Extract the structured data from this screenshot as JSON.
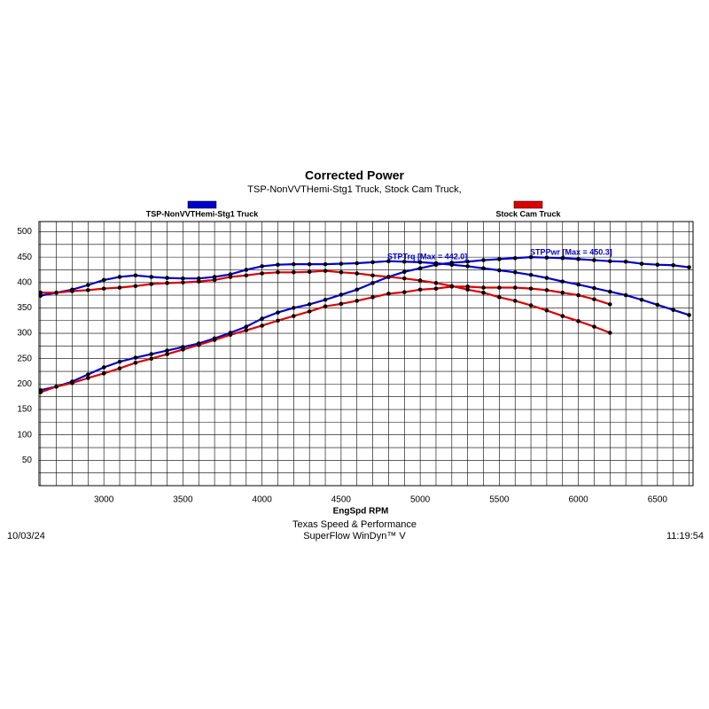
{
  "chart_data": {
    "type": "line",
    "title": "Corrected Power",
    "subtitle": "TSP-NonVVTHemi-Stg1 Truck, Stock Cam Truck,",
    "x_label": "EngSpd RPM",
    "annotations": [
      "STPTrq [Max = 442.0]",
      "STPPwr [Max = 450.3]"
    ],
    "footer": {
      "date": "10/03/24",
      "company": "Texas Speed & Performance",
      "software": "SuperFlow WinDyn™ V",
      "time": "11:19:54"
    },
    "x": [
      2600,
      2700,
      2800,
      2900,
      3000,
      3100,
      3200,
      3300,
      3400,
      3500,
      3600,
      3700,
      3800,
      3900,
      4000,
      4100,
      4200,
      4300,
      4400,
      4500,
      4600,
      4700,
      4800,
      4900,
      5000,
      5100,
      5200,
      5300,
      5400,
      5500,
      5600,
      5700,
      5800,
      5900,
      6000,
      6100,
      6200,
      6300,
      6400,
      6500,
      6600,
      6700
    ],
    "series": [
      {
        "name": "TSP-NonVVTHemi-Stg1 Truck",
        "color": "#0000cc",
        "torque": [
          374,
          380,
          386,
          395,
          405,
          411,
          414,
          411,
          409,
          408,
          408,
          411,
          416,
          425,
          432,
          435,
          436,
          436,
          436,
          437,
          438,
          440,
          442,
          441,
          440,
          438,
          435,
          432,
          428,
          424,
          420,
          415,
          409,
          402,
          396,
          389,
          382,
          375,
          366,
          356,
          346,
          336
        ],
        "power": [
          188,
          195,
          205,
          219,
          233,
          244,
          252,
          259,
          266,
          273,
          280,
          290,
          301,
          313,
          329,
          341,
          350,
          357,
          366,
          376,
          386,
          399,
          411,
          421,
          428,
          435,
          439,
          441,
          444,
          446,
          448,
          450,
          449,
          448,
          446,
          444,
          442,
          441,
          437,
          435,
          434,
          430
        ]
      },
      {
        "name": "Stock Cam Truck",
        "color": "#dd0000",
        "torque": [
          380,
          380,
          383,
          385,
          388,
          390,
          393,
          397,
          399,
          400,
          402,
          405,
          411,
          414,
          418,
          420,
          420,
          421,
          423,
          420,
          418,
          414,
          411,
          408,
          404,
          399,
          393,
          386,
          380,
          371,
          364,
          355,
          345,
          334,
          324,
          313,
          301,
          null,
          null,
          null,
          null,
          null
        ],
        "power": [
          184,
          195,
          202,
          212,
          221,
          231,
          242,
          250,
          259,
          268,
          277,
          287,
          297,
          306,
          315,
          325,
          334,
          343,
          353,
          358,
          364,
          371,
          378,
          381,
          386,
          388,
          392,
          392,
          390,
          390,
          390,
          388,
          385,
          380,
          375,
          367,
          357,
          null,
          null,
          null,
          null,
          null
        ]
      }
    ],
    "xlim": [
      2590,
      6725
    ],
    "ylim": [
      0,
      520
    ],
    "xticks": [
      3000,
      3500,
      4000,
      4500,
      5000,
      5500,
      6000,
      6500
    ],
    "yticks": [
      50,
      100,
      150,
      200,
      250,
      300,
      350,
      400,
      450,
      500
    ],
    "xgrid": [
      2600,
      2700,
      2800,
      2900,
      3000,
      3100,
      3200,
      3300,
      3400,
      3500,
      3600,
      3700,
      3800,
      3900,
      4000,
      4100,
      4200,
      4300,
      4400,
      4500,
      4600,
      4700,
      4800,
      4900,
      5000,
      5100,
      5200,
      5300,
      5400,
      5500,
      5600,
      5700,
      5800,
      5900,
      6000,
      6100,
      6200,
      6300,
      6400,
      6500,
      6600,
      6700
    ],
    "ygrid": [
      25,
      50,
      75,
      100,
      125,
      150,
      175,
      200,
      225,
      250,
      275,
      300,
      325,
      350,
      375,
      400,
      425,
      450,
      475,
      500
    ],
    "grid": true
  }
}
